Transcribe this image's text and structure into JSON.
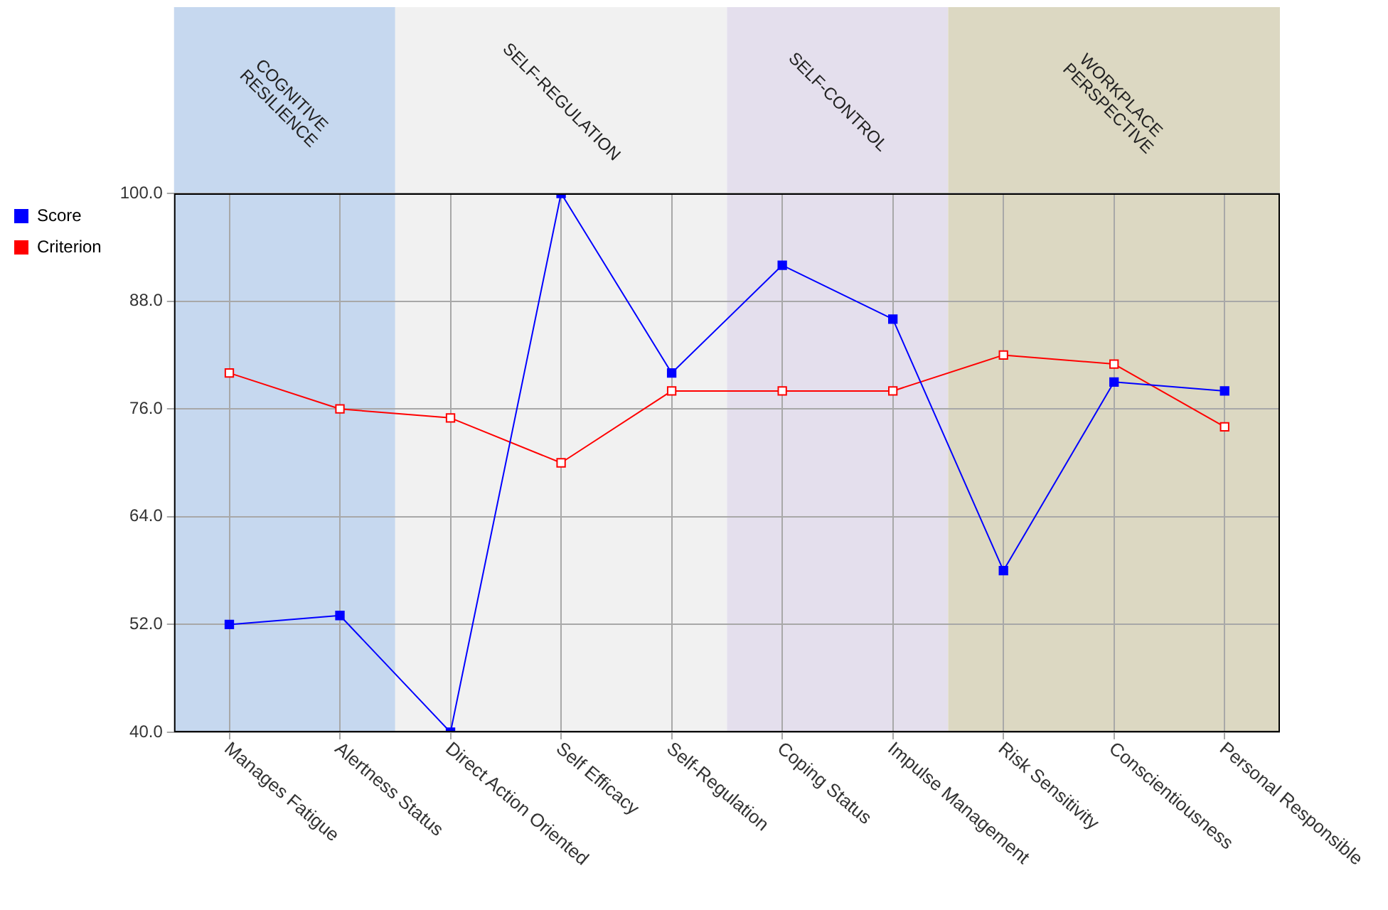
{
  "chart_data": {
    "type": "line",
    "categories": [
      "Manages Fatigue",
      "Alertness Status",
      "Direct Action Oriented",
      "Self Efficacy",
      "Self-Regulation",
      "Coping Status",
      "Impulse Management",
      "Risk Sensitivity",
      "Conscientiousness",
      "Personal Responsible"
    ],
    "series": [
      {
        "name": "Score",
        "color": "#0000ff",
        "marker": "square",
        "values": [
          52,
          53,
          40,
          100,
          80,
          92,
          86,
          58,
          79,
          78
        ]
      },
      {
        "name": "Criterion",
        "color": "#ff0000",
        "marker": "square_open",
        "values": [
          80,
          76,
          75,
          70,
          78,
          78,
          78,
          82,
          81,
          74
        ]
      }
    ],
    "ylim": [
      40,
      100
    ],
    "yticks": [
      {
        "value": 40,
        "label": "40.0"
      },
      {
        "value": 52,
        "label": "52.0"
      },
      {
        "value": 64,
        "label": "64.0"
      },
      {
        "value": 76,
        "label": "76.0"
      },
      {
        "value": 88,
        "label": "88.0"
      },
      {
        "value": 100,
        "label": "100.0"
      }
    ],
    "bands": [
      {
        "axis": "x",
        "from": "Manages Fatigue",
        "to": "Alertness Status",
        "label": "COGNITIVE RESILIENCE",
        "color": "#c6d8ef"
      },
      {
        "axis": "x",
        "from": "Direct Action Oriented",
        "to": "Self-Regulation",
        "label": "SELF-REGULATION",
        "color": "#f1f1f1"
      },
      {
        "axis": "x",
        "from": "Coping Status",
        "to": "Impulse Management",
        "label": "SELF-CONTROL",
        "color": "#e4dfed"
      },
      {
        "axis": "x",
        "from": "Risk Sensitivity",
        "to": "Personal Responsible",
        "label": "WORKPLACE PERSPECTIVE",
        "color": "#dcd8c2"
      }
    ],
    "grid": true,
    "legend": "left",
    "line_style": "solid"
  }
}
